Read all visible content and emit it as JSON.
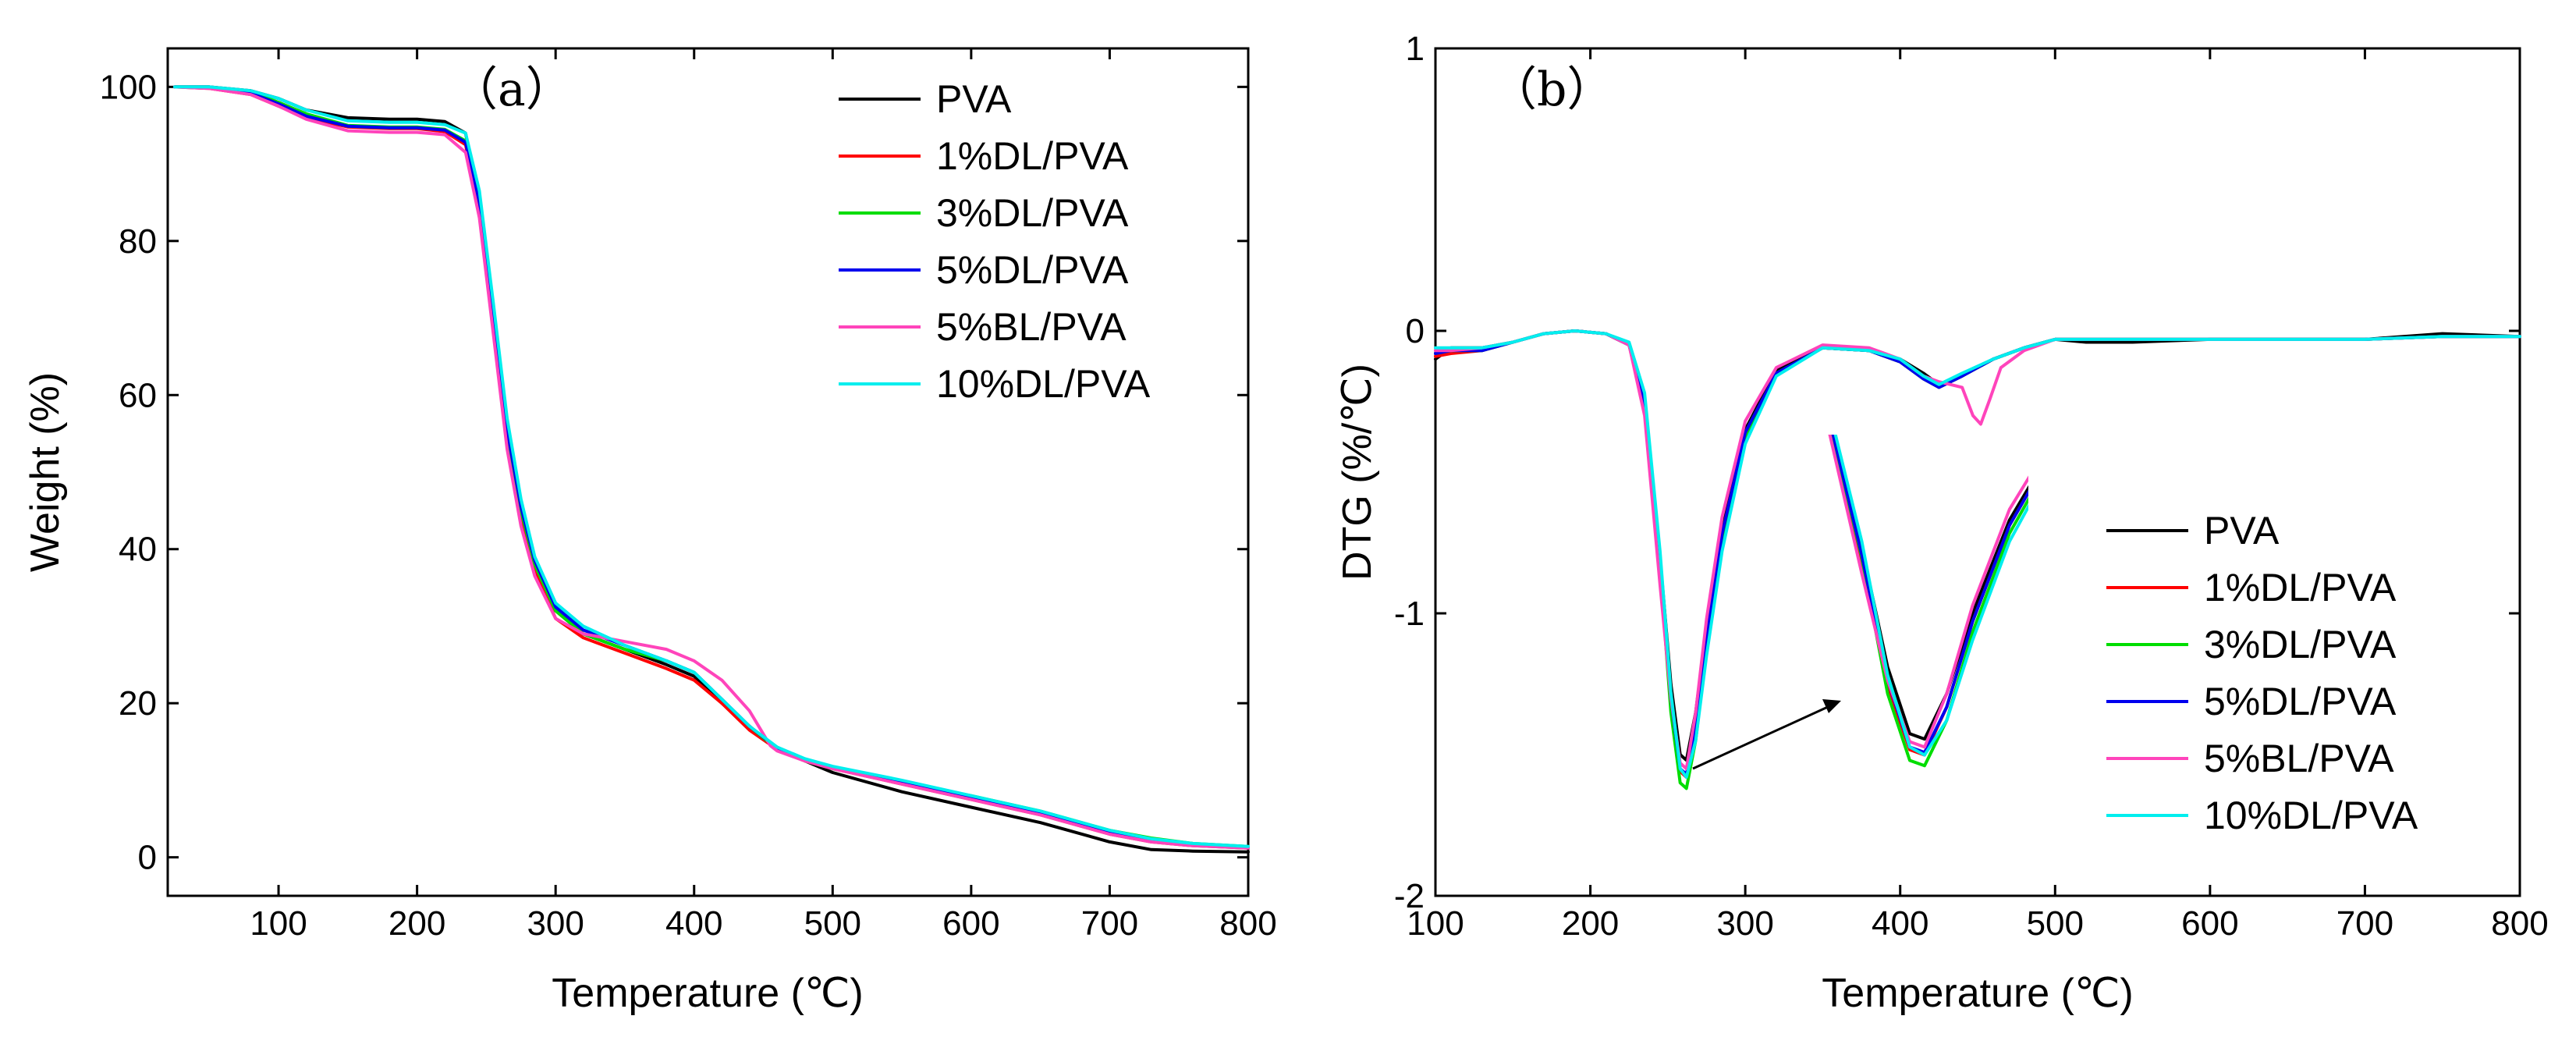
{
  "colors": {
    "PVA": "#000000",
    "1%DL/PVA": "#ff0000",
    "3%DL/PVA": "#00dd00",
    "5%DL/PVA": "#0000ee",
    "5%BL/PVA": "#ff44bb",
    "10%DL/PVA": "#00eeee"
  },
  "chart_data": [
    {
      "type": "line",
      "panel_label": "（a）",
      "xlabel": "Temperature (℃)",
      "ylabel": "Weight (%)",
      "xlim": [
        20,
        800
      ],
      "ylim": [
        -5,
        105
      ],
      "xticks": [
        100,
        200,
        300,
        400,
        500,
        600,
        700,
        800
      ],
      "yticks": [
        0,
        20,
        40,
        60,
        80,
        100
      ],
      "legend_position": "top-right",
      "series": [
        {
          "name": "PVA",
          "x": [
            25,
            50,
            80,
            100,
            120,
            150,
            180,
            200,
            220,
            235,
            245,
            255,
            265,
            275,
            285,
            300,
            320,
            350,
            380,
            400,
            420,
            440,
            460,
            480,
            500,
            550,
            600,
            650,
            700,
            730,
            760,
            800
          ],
          "y": [
            100,
            100,
            99.5,
            98.5,
            97,
            96,
            95.8,
            95.8,
            95.5,
            94,
            85,
            70,
            55,
            45,
            38,
            32,
            29,
            27,
            25,
            23.5,
            20,
            17,
            14,
            12.5,
            11,
            8.5,
            6.5,
            4.5,
            2,
            1,
            0.8,
            0.7
          ]
        },
        {
          "name": "1%DL/PVA",
          "x": [
            25,
            50,
            80,
            100,
            120,
            150,
            180,
            200,
            220,
            235,
            245,
            255,
            265,
            275,
            285,
            300,
            320,
            350,
            380,
            400,
            420,
            440,
            460,
            480,
            500,
            550,
            600,
            650,
            700,
            730,
            760,
            800
          ],
          "y": [
            100,
            99.8,
            99,
            97.5,
            96,
            94.8,
            94.6,
            94.6,
            94.2,
            92.5,
            84,
            69,
            54,
            44,
            37,
            31,
            28.5,
            26.5,
            24.5,
            23,
            20,
            16.5,
            14,
            12.5,
            11.5,
            9.5,
            7.5,
            5.5,
            3,
            2,
            1.5,
            1.2
          ]
        },
        {
          "name": "3%DL/PVA",
          "x": [
            25,
            50,
            80,
            100,
            120,
            150,
            180,
            200,
            220,
            235,
            245,
            255,
            265,
            275,
            285,
            300,
            320,
            350,
            380,
            400,
            420,
            440,
            460,
            480,
            500,
            550,
            600,
            650,
            700,
            730,
            760,
            800
          ],
          "y": [
            100,
            100,
            99.3,
            98,
            96.5,
            95,
            94.8,
            94.8,
            94.5,
            93,
            85,
            70,
            55,
            45,
            38,
            32,
            29,
            27,
            25.5,
            24,
            20.5,
            17,
            14,
            12.5,
            11.5,
            9.8,
            8,
            6,
            3.5,
            2.5,
            1.8,
            1.4
          ]
        },
        {
          "name": "5%DL/PVA",
          "x": [
            25,
            50,
            80,
            100,
            120,
            150,
            180,
            200,
            220,
            235,
            245,
            255,
            265,
            275,
            285,
            300,
            320,
            350,
            380,
            400,
            420,
            440,
            460,
            480,
            500,
            550,
            600,
            650,
            700,
            730,
            760,
            800
          ],
          "y": [
            100,
            100,
            99.2,
            97.8,
            96.2,
            94.9,
            94.7,
            94.7,
            94.4,
            92.8,
            85,
            70.5,
            55.5,
            45.5,
            38.5,
            32.5,
            29.5,
            27.5,
            25.5,
            24,
            20.5,
            17,
            14.2,
            12.6,
            11.6,
            9.8,
            7.8,
            5.8,
            3.3,
            2.3,
            1.7,
            1.3
          ]
        },
        {
          "name": "5%BL/PVA",
          "x": [
            25,
            50,
            80,
            100,
            120,
            150,
            180,
            200,
            220,
            235,
            245,
            255,
            265,
            275,
            285,
            300,
            320,
            350,
            380,
            400,
            420,
            440,
            450,
            455,
            460,
            480,
            500,
            550,
            600,
            650,
            700,
            730,
            760,
            800
          ],
          "y": [
            100,
            99.8,
            99,
            97.5,
            95.8,
            94.3,
            94.1,
            94.1,
            93.8,
            91.5,
            83,
            68,
            53,
            43,
            36.5,
            31,
            29,
            28,
            27,
            25.5,
            23,
            19,
            16,
            14.5,
            13.8,
            12.5,
            11.5,
            9.5,
            7.5,
            5.5,
            3,
            2,
            1.5,
            1.2
          ]
        },
        {
          "name": "10%DL/PVA",
          "x": [
            25,
            50,
            80,
            100,
            120,
            150,
            180,
            200,
            220,
            235,
            245,
            255,
            265,
            275,
            285,
            300,
            320,
            350,
            380,
            400,
            420,
            440,
            460,
            480,
            500,
            550,
            600,
            650,
            700,
            730,
            760,
            800
          ],
          "y": [
            100,
            100,
            99.5,
            98.5,
            97,
            95.6,
            95.4,
            95.4,
            95.1,
            94,
            86.5,
            72,
            57,
            46.5,
            39,
            33,
            30,
            27.5,
            25.5,
            24,
            20.5,
            17,
            14.3,
            12.8,
            11.8,
            10,
            8,
            6,
            3.5,
            2.4,
            1.8,
            1.4
          ]
        }
      ]
    },
    {
      "type": "line",
      "panel_label": "（b）",
      "xlabel": "Temperature (℃)",
      "ylabel": "DTG (%/℃)",
      "xlim": [
        100,
        800
      ],
      "ylim": [
        -2,
        1
      ],
      "xticks": [
        100,
        200,
        300,
        400,
        500,
        600,
        700,
        800
      ],
      "yticks": [
        -2,
        -1,
        0,
        1
      ],
      "legend_position": "bottom-right",
      "annotation": "arrow from main peak to magnified inset of peaks",
      "series": [
        {
          "name": "PVA",
          "x": [
            100,
            110,
            130,
            150,
            170,
            190,
            210,
            225,
            235,
            245,
            252,
            258,
            262,
            268,
            275,
            285,
            300,
            320,
            350,
            380,
            400,
            415,
            425,
            440,
            460,
            480,
            500,
            520,
            550,
            600,
            650,
            700,
            750,
            800
          ],
          "y": [
            -0.1,
            -0.06,
            -0.06,
            -0.04,
            -0.01,
            0,
            -0.01,
            -0.05,
            -0.25,
            -0.8,
            -1.25,
            -1.5,
            -1.52,
            -1.35,
            -1.05,
            -0.7,
            -0.35,
            -0.14,
            -0.06,
            -0.07,
            -0.1,
            -0.15,
            -0.19,
            -0.16,
            -0.1,
            -0.06,
            -0.03,
            -0.04,
            -0.04,
            -0.03,
            -0.03,
            -0.03,
            -0.01,
            -0.02
          ]
        },
        {
          "name": "1%DL/PVA",
          "x": [
            100,
            110,
            130,
            150,
            170,
            190,
            210,
            225,
            235,
            245,
            252,
            258,
            262,
            268,
            275,
            285,
            300,
            320,
            350,
            380,
            400,
            415,
            425,
            440,
            460,
            480,
            500,
            520,
            550,
            600,
            650,
            700,
            750,
            800
          ],
          "y": [
            -0.09,
            -0.08,
            -0.07,
            -0.04,
            -0.01,
            0,
            -0.01,
            -0.05,
            -0.27,
            -0.85,
            -1.32,
            -1.56,
            -1.58,
            -1.4,
            -1.08,
            -0.72,
            -0.36,
            -0.15,
            -0.06,
            -0.07,
            -0.11,
            -0.17,
            -0.2,
            -0.16,
            -0.1,
            -0.06,
            -0.03,
            -0.03,
            -0.03,
            -0.03,
            -0.03,
            -0.03,
            -0.02,
            -0.02
          ]
        },
        {
          "name": "3%DL/PVA",
          "x": [
            100,
            110,
            130,
            150,
            170,
            190,
            210,
            225,
            235,
            245,
            252,
            258,
            262,
            268,
            275,
            285,
            300,
            320,
            350,
            380,
            400,
            415,
            425,
            440,
            460,
            480,
            500,
            520,
            550,
            600,
            650,
            700,
            750,
            800
          ],
          "y": [
            -0.08,
            -0.07,
            -0.07,
            -0.04,
            -0.01,
            0,
            -0.01,
            -0.05,
            -0.26,
            -0.84,
            -1.35,
            -1.6,
            -1.62,
            -1.45,
            -1.12,
            -0.75,
            -0.38,
            -0.15,
            -0.06,
            -0.07,
            -0.11,
            -0.17,
            -0.2,
            -0.16,
            -0.1,
            -0.06,
            -0.03,
            -0.03,
            -0.03,
            -0.03,
            -0.03,
            -0.03,
            -0.02,
            -0.02
          ]
        },
        {
          "name": "5%DL/PVA",
          "x": [
            100,
            110,
            130,
            150,
            170,
            190,
            210,
            225,
            235,
            245,
            252,
            258,
            262,
            268,
            275,
            285,
            300,
            320,
            350,
            380,
            400,
            415,
            425,
            440,
            460,
            480,
            500,
            520,
            550,
            600,
            650,
            700,
            750,
            800
          ],
          "y": [
            -0.08,
            -0.07,
            -0.07,
            -0.04,
            -0.01,
            0,
            -0.01,
            -0.05,
            -0.25,
            -0.83,
            -1.3,
            -1.55,
            -1.57,
            -1.4,
            -1.08,
            -0.72,
            -0.36,
            -0.15,
            -0.06,
            -0.07,
            -0.11,
            -0.17,
            -0.2,
            -0.16,
            -0.1,
            -0.06,
            -0.03,
            -0.03,
            -0.03,
            -0.03,
            -0.03,
            -0.03,
            -0.02,
            -0.02
          ]
        },
        {
          "name": "5%BL/PVA",
          "x": [
            100,
            110,
            130,
            150,
            170,
            190,
            210,
            225,
            235,
            245,
            252,
            258,
            262,
            268,
            275,
            285,
            300,
            320,
            350,
            380,
            400,
            415,
            425,
            440,
            447,
            452,
            458,
            465,
            480,
            500,
            520,
            550,
            600,
            650,
            700,
            750,
            800
          ],
          "y": [
            -0.07,
            -0.07,
            -0.06,
            -0.04,
            -0.01,
            0,
            -0.01,
            -0.05,
            -0.3,
            -0.9,
            -1.3,
            -1.53,
            -1.55,
            -1.35,
            -1.02,
            -0.66,
            -0.32,
            -0.13,
            -0.05,
            -0.06,
            -0.1,
            -0.16,
            -0.18,
            -0.2,
            -0.3,
            -0.33,
            -0.24,
            -0.13,
            -0.07,
            -0.03,
            -0.03,
            -0.03,
            -0.03,
            -0.03,
            -0.03,
            -0.02,
            -0.02
          ]
        },
        {
          "name": "10%DL/PVA",
          "x": [
            100,
            110,
            130,
            150,
            170,
            190,
            210,
            225,
            235,
            245,
            252,
            258,
            262,
            268,
            275,
            285,
            300,
            320,
            350,
            380,
            400,
            415,
            425,
            440,
            460,
            480,
            500,
            520,
            550,
            600,
            650,
            700,
            750,
            800
          ],
          "y": [
            -0.06,
            -0.06,
            -0.06,
            -0.04,
            -0.01,
            0,
            -0.01,
            -0.04,
            -0.22,
            -0.78,
            -1.28,
            -1.55,
            -1.58,
            -1.45,
            -1.15,
            -0.78,
            -0.4,
            -0.16,
            -0.06,
            -0.07,
            -0.1,
            -0.16,
            -0.19,
            -0.15,
            -0.1,
            -0.06,
            -0.03,
            -0.03,
            -0.03,
            -0.03,
            -0.03,
            -0.03,
            -0.02,
            -0.02
          ]
        }
      ]
    }
  ]
}
